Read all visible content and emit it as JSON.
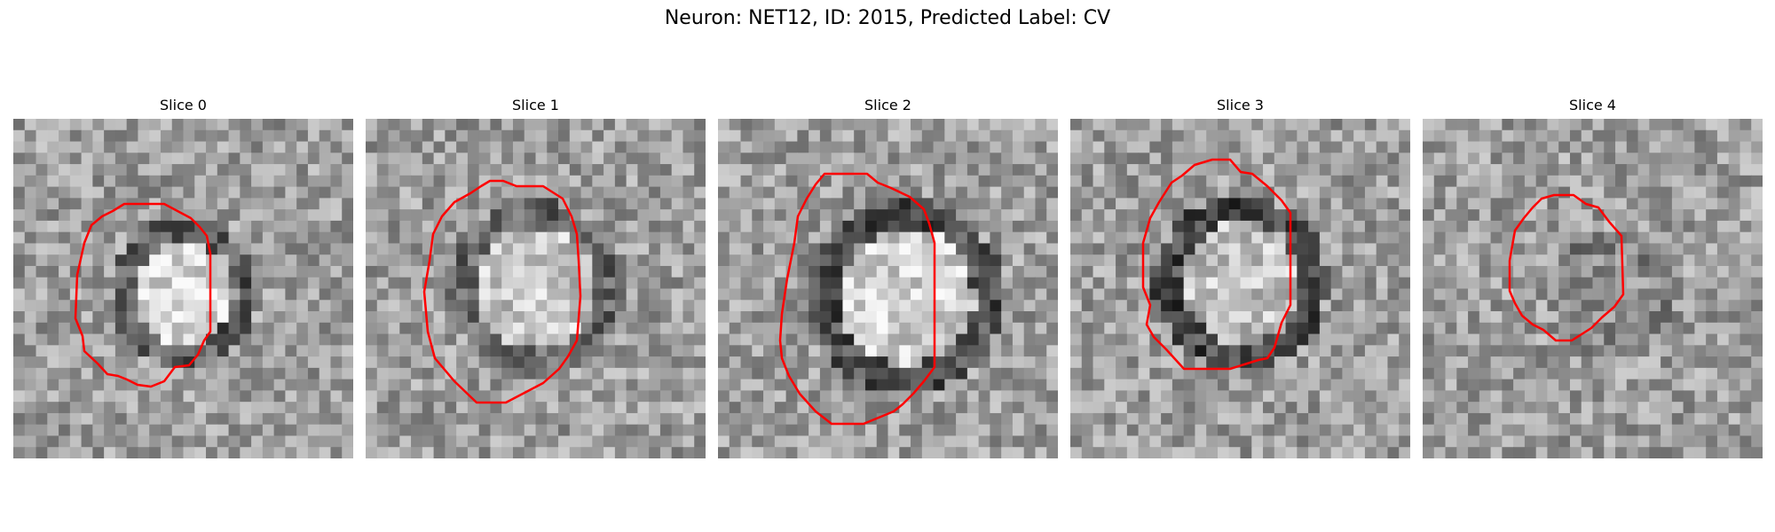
{
  "figure": {
    "title": "Neuron: NET12, ID: 2015, Predicted Label: CV"
  },
  "panels": [
    {
      "title": "Slice 0",
      "seed": 11,
      "outline_color": "#ff0000",
      "center_brightness": 0.85,
      "ring_darkness": 0.35
    },
    {
      "title": "Slice 1",
      "seed": 23,
      "outline_color": "#ff0000",
      "center_brightness": 0.78,
      "ring_darkness": 0.4
    },
    {
      "title": "Slice 2",
      "seed": 37,
      "outline_color": "#ff0000",
      "center_brightness": 0.82,
      "ring_darkness": 0.3
    },
    {
      "title": "Slice 3",
      "seed": 41,
      "outline_color": "#ff0000",
      "center_brightness": 0.76,
      "ring_darkness": 0.28
    },
    {
      "title": "Slice 4",
      "seed": 53,
      "outline_color": "#ff0000",
      "center_brightness": 0.55,
      "ring_darkness": 0.5
    }
  ]
}
